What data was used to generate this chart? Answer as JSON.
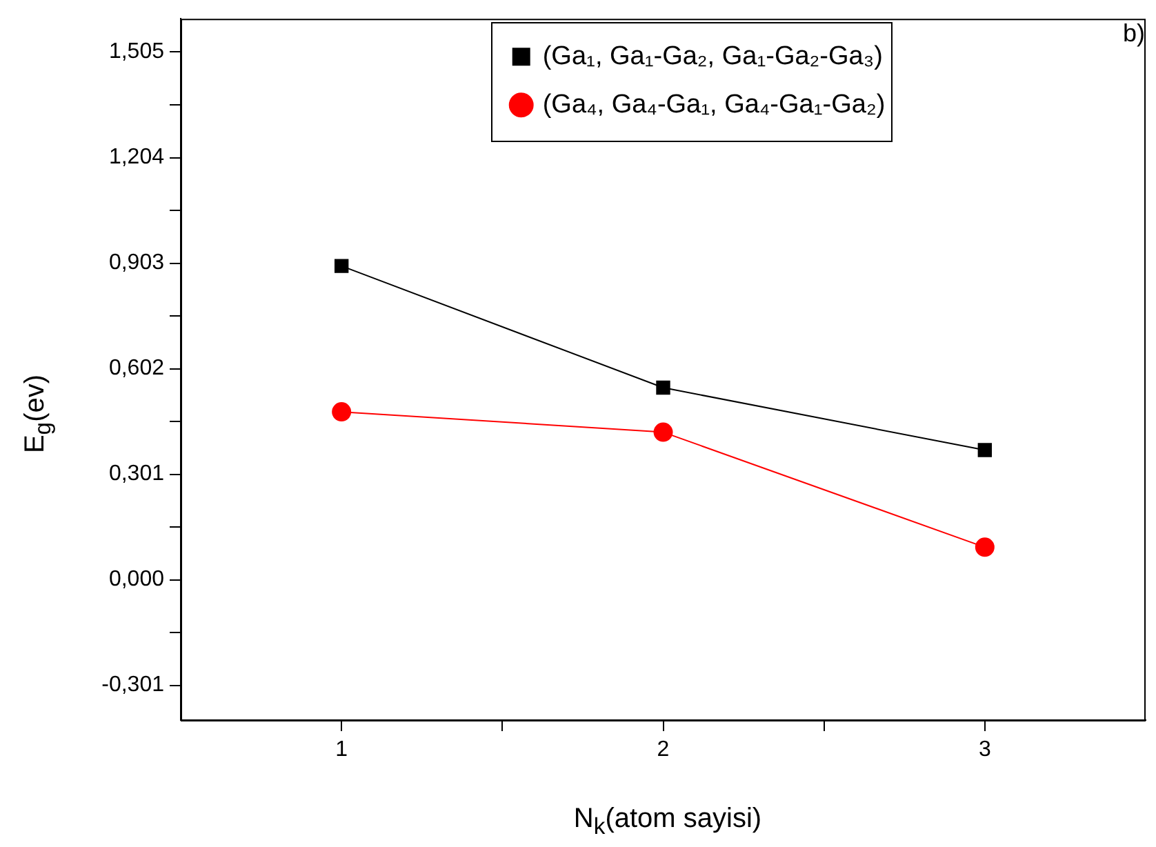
{
  "chart_data": {
    "type": "line",
    "xlabel": "N$_{k}$(atom sayisi)",
    "ylabel": "E$_{g}$(ev)",
    "x": [
      1,
      2,
      3
    ],
    "series": [
      {
        "name": "(Ga₁, Ga₁-Ga₂, Ga₁-Ga₂-Ga₃)",
        "color": "#000000",
        "marker": "square",
        "values": [
          0.895,
          0.548,
          0.37
        ]
      },
      {
        "name": "(Ga₄, Ga₄-Ga₁, Ga₄-Ga₁-Ga₂)",
        "color": "#ff0000",
        "marker": "circle",
        "values": [
          0.479,
          0.421,
          0.093
        ]
      }
    ],
    "xlim": [
      0.5,
      3.5
    ],
    "xticks": [
      1,
      {
        "value": 1.5,
        "label": null
      },
      2,
      {
        "value": 2.5,
        "label": null
      },
      3
    ],
    "ylim": [
      -0.4,
      1.6
    ],
    "yticks": [
      {
        "value": -0.301,
        "label": "-0,301"
      },
      {
        "value": -0.1505,
        "label": null
      },
      {
        "value": 0,
        "label": "0,000"
      },
      {
        "value": 0.1505,
        "label": null
      },
      {
        "value": 0.301,
        "label": "0,301"
      },
      {
        "value": 0.4515,
        "label": null
      },
      {
        "value": 0.602,
        "label": "0,602"
      },
      {
        "value": 0.7525,
        "label": null
      },
      {
        "value": 0.903,
        "label": "0,903"
      },
      {
        "value": 1.0535,
        "label": null
      },
      {
        "value": 1.204,
        "label": "1,204"
      },
      {
        "value": 1.3545,
        "label": null
      },
      {
        "value": 1.505,
        "label": "1,505"
      }
    ],
    "grid": false,
    "legend": "top",
    "annotations": [
      "b)"
    ]
  }
}
